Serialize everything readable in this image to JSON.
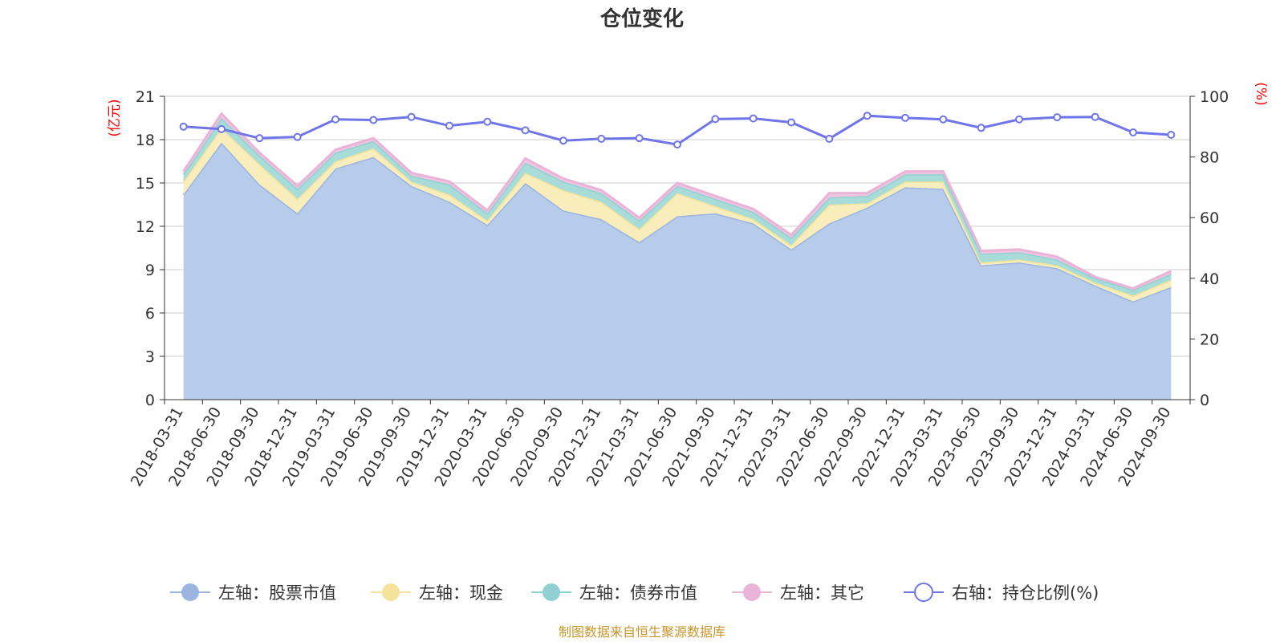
{
  "chart_data": {
    "type": "area",
    "title": "仓位变化",
    "source_note": "制图数据来自恒生聚源数据库",
    "left_axis": {
      "unit": "(亿元)",
      "min": 0,
      "max": 21,
      "ticks": [
        "0",
        "3",
        "6",
        "9",
        "12",
        "15",
        "18",
        "21"
      ]
    },
    "right_axis": {
      "unit": "(%)",
      "min": 0,
      "max": 100,
      "ticks": [
        "0",
        "20",
        "40",
        "60",
        "80",
        "100"
      ]
    },
    "categories": [
      "2018-03-31",
      "2018-06-30",
      "2018-09-30",
      "2018-12-31",
      "2019-03-31",
      "2019-06-30",
      "2019-09-30",
      "2019-12-31",
      "2020-03-31",
      "2020-06-30",
      "2020-09-30",
      "2020-12-31",
      "2021-03-31",
      "2021-06-30",
      "2021-09-30",
      "2021-12-31",
      "2022-03-31",
      "2022-06-30",
      "2022-09-30",
      "2022-12-31",
      "2023-03-31",
      "2023-06-30",
      "2023-09-30",
      "2023-12-31",
      "2024-03-31",
      "2024-06-30",
      "2024-09-30"
    ],
    "series": [
      {
        "name": "左轴：股票市值",
        "axis": "left",
        "type": "stacked-area",
        "color": "#9bb5e0",
        "fill": "#b7cbea",
        "values": [
          14.2,
          17.8,
          14.9,
          12.9,
          16.0,
          16.8,
          14.8,
          13.7,
          12.1,
          15.0,
          13.1,
          12.5,
          10.9,
          12.7,
          12.9,
          12.2,
          10.4,
          12.2,
          13.3,
          14.7,
          14.6,
          9.3,
          9.5,
          9.1,
          7.9,
          6.8,
          7.8
        ]
      },
      {
        "name": "左轴：现金",
        "axis": "left",
        "type": "stacked-area",
        "color": "#f5e39a",
        "fill": "#f8edbb",
        "values": [
          0.9,
          1.0,
          1.4,
          1.0,
          0.5,
          0.6,
          0.3,
          0.5,
          0.3,
          0.7,
          1.4,
          1.2,
          0.9,
          1.6,
          0.5,
          0.3,
          0.3,
          1.3,
          0.3,
          0.4,
          0.5,
          0.2,
          0.2,
          0.2,
          0.2,
          0.4,
          0.5
        ]
      },
      {
        "name": "左轴：债券市值",
        "axis": "left",
        "type": "stacked-area",
        "color": "#90d0d3",
        "fill": "#a8dcd9",
        "values": [
          0.5,
          0.7,
          0.6,
          0.7,
          0.6,
          0.5,
          0.4,
          0.7,
          0.5,
          0.7,
          0.6,
          0.6,
          0.6,
          0.5,
          0.5,
          0.5,
          0.5,
          0.5,
          0.5,
          0.5,
          0.5,
          0.6,
          0.5,
          0.4,
          0.3,
          0.4,
          0.4
        ]
      },
      {
        "name": "左轴：其它",
        "axis": "left",
        "type": "stacked-area",
        "color": "#eab4d8",
        "fill": "#efc6e1",
        "values": [
          0.2,
          0.3,
          0.2,
          0.2,
          0.2,
          0.2,
          0.2,
          0.2,
          0.2,
          0.3,
          0.2,
          0.2,
          0.2,
          0.2,
          0.2,
          0.2,
          0.2,
          0.3,
          0.2,
          0.2,
          0.2,
          0.2,
          0.2,
          0.2,
          0.1,
          0.1,
          0.2
        ]
      },
      {
        "name": "右轴：持仓比例(%)",
        "axis": "right",
        "type": "line",
        "color": "#6f75e8",
        "values": [
          90.0,
          89.2,
          86.2,
          86.6,
          92.4,
          92.2,
          93.2,
          90.3,
          91.6,
          88.8,
          85.4,
          86.0,
          86.2,
          84.1,
          92.5,
          92.7,
          91.4,
          86.0,
          93.6,
          92.9,
          92.4,
          89.6,
          92.4,
          93.1,
          93.2,
          88.1,
          87.3
        ]
      }
    ],
    "grid": true,
    "legend_position": "bottom"
  }
}
